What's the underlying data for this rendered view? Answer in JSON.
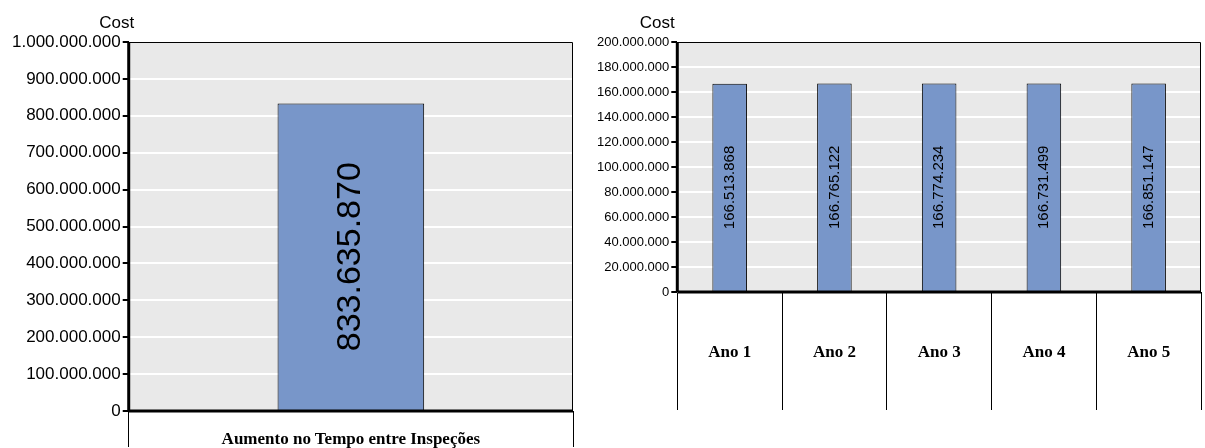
{
  "chart_data": [
    {
      "type": "bar",
      "ylabel": "Cost",
      "categories": [
        "Aumento no Tempo entre Inspeções"
      ],
      "values": [
        833635870
      ],
      "value_labels": [
        "833.635.870"
      ],
      "color": "#7896c9",
      "ylim": [
        0,
        1000000000
      ],
      "yticks": [
        0,
        {
          "value": 100000000,
          "label": "100.000.000"
        },
        {
          "value": 200000000,
          "label": "200.000.000"
        },
        {
          "value": 300000000,
          "label": "300.000.000"
        },
        {
          "value": 400000000,
          "label": "400.000.000"
        },
        {
          "value": 500000000,
          "label": "500.000.000"
        },
        {
          "value": 600000000,
          "label": "600.000.000"
        },
        {
          "value": 700000000,
          "label": "700.000.000"
        },
        {
          "value": 800000000,
          "label": "800.000.000"
        },
        {
          "value": 900000000,
          "label": "900.000.000"
        },
        {
          "value": 1000000000,
          "label": "1.000.000.000"
        }
      ],
      "grid": "y",
      "legend": false
    },
    {
      "type": "bar",
      "ylabel": "Cost",
      "categories": [
        "Ano 1",
        "Ano 2",
        "Ano 3",
        "Ano 4",
        "Ano 5"
      ],
      "values": [
        166513868,
        166765122,
        166774234,
        166731499,
        166851147
      ],
      "value_labels": [
        "166.513.868",
        "166.765.122",
        "166.774.234",
        "166.731.499",
        "166.851.147"
      ],
      "color": "#7896c9",
      "ylim": [
        0,
        200000000
      ],
      "yticks": [
        0,
        {
          "value": 20000000,
          "label": "20.000.000"
        },
        {
          "value": 40000000,
          "label": "40.000.000"
        },
        {
          "value": 60000000,
          "label": "60.000.000"
        },
        {
          "value": 80000000,
          "label": "80.000.000"
        },
        {
          "value": 100000000,
          "label": "100.000.000"
        },
        {
          "value": 120000000,
          "label": "120.000.000"
        },
        {
          "value": 140000000,
          "label": "140.000.000"
        },
        {
          "value": 160000000,
          "label": "160.000.000"
        },
        {
          "value": 180000000,
          "label": "180.000.000"
        },
        {
          "value": 200000000,
          "label": "200.000.000"
        }
      ],
      "grid": "y",
      "legend": false
    }
  ]
}
